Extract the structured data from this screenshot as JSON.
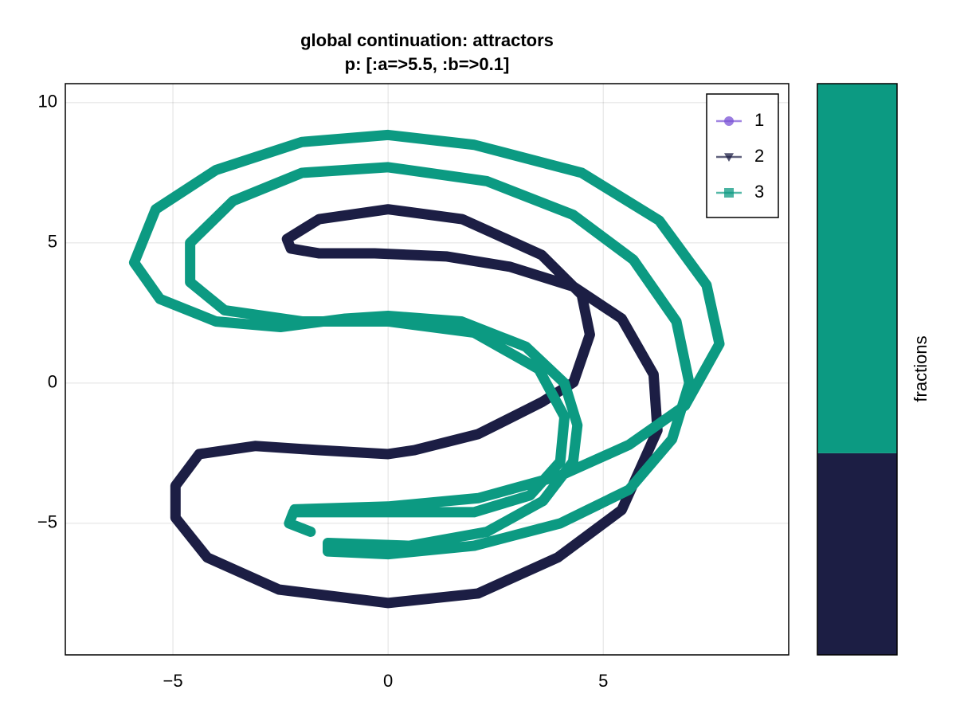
{
  "chart_data": {
    "type": "scatter",
    "title": "global continuation: attractors",
    "subtitle": "p: [:a=>5.5, :b=>0.1]",
    "xlim": [
      -7.5,
      9.31
    ],
    "ylim": [
      -9.69,
      10.68
    ],
    "xticks": [
      {
        "value": -5,
        "label": "−5"
      },
      0,
      5
    ],
    "yticks": [
      {
        "value": -5,
        "label": "−5"
      },
      0,
      5,
      10
    ],
    "grid": true,
    "legend": "top-right",
    "series": [
      {
        "name": "1",
        "color": "#7a52d6",
        "marker": "circle",
        "x": [],
        "y": []
      },
      {
        "name": "2",
        "color": "#1c1e44",
        "marker": "triangle",
        "x": [
          -2.35,
          -1.6,
          0,
          1.72,
          3.57,
          4.5,
          4.69,
          4.31,
          3.57,
          2.09,
          0.61,
          0,
          -1.61,
          -3.09,
          -4.39,
          -4.94,
          -4.94,
          -4.2,
          -2.54,
          0,
          2.09,
          3.94,
          5.43,
          6.26,
          6.17,
          5.43,
          4.31,
          2.83,
          1.35,
          -0.31,
          -1.61,
          -2.26,
          -2.35
        ],
        "y": [
          5.14,
          5.85,
          6.2,
          5.85,
          4.57,
          3.15,
          1.73,
          0.03,
          -0.68,
          -1.82,
          -2.39,
          -2.53,
          -2.39,
          -2.24,
          -2.53,
          -3.66,
          -4.8,
          -6.22,
          -7.36,
          -7.84,
          -7.5,
          -6.22,
          -4.52,
          -1.68,
          0.31,
          2.3,
          3.44,
          4.15,
          4.52,
          4.63,
          4.63,
          4.8,
          5.14
        ]
      },
      {
        "name": "3",
        "color": "#0c9a82",
        "marker": "square",
        "x": [
          -2.17,
          0,
          2.1,
          4.0,
          5.6,
          6.9,
          7.7,
          7.4,
          6.3,
          4.5,
          2,
          0,
          -2,
          -4,
          -5.4,
          -5.9,
          -5.3,
          -4,
          -2.5,
          -1,
          0,
          1.7,
          3.2,
          4.1,
          4.4,
          4.3,
          3.6,
          2.3,
          0.5,
          -1.4,
          -1.4,
          0,
          2,
          4,
          5.6,
          6.6,
          7.0,
          6.7,
          5.7,
          4.3,
          2.3,
          0,
          -2,
          -3.6,
          -4.6,
          -4.6,
          -3.8,
          -2,
          0,
          2,
          3.5,
          4.1,
          4.0,
          3.3,
          2,
          0,
          -2.2,
          -2.3,
          -1.8
        ],
        "y": [
          -4.5,
          -4.4,
          -4.1,
          -3.3,
          -2.2,
          -0.8,
          1.4,
          3.5,
          5.8,
          7.5,
          8.5,
          8.85,
          8.6,
          7.6,
          6.2,
          4.3,
          3.0,
          2.2,
          2.0,
          2.3,
          2.4,
          2.2,
          1.3,
          0,
          -1.5,
          -2.8,
          -4.2,
          -5.3,
          -5.8,
          -5.7,
          -6.0,
          -6.1,
          -5.8,
          -5.0,
          -3.8,
          -2.0,
          0,
          2.2,
          4.4,
          6.0,
          7.2,
          7.7,
          7.5,
          6.5,
          5,
          3.6,
          2.6,
          2.2,
          2.2,
          1.8,
          0.5,
          -1.2,
          -2.8,
          -4.0,
          -4.6,
          -4.6,
          -4.6,
          -5.0,
          -5.3
        ]
      }
    ],
    "fractions": {
      "label": "fractions",
      "values": [
        0,
        0.353,
        0.647
      ]
    }
  }
}
